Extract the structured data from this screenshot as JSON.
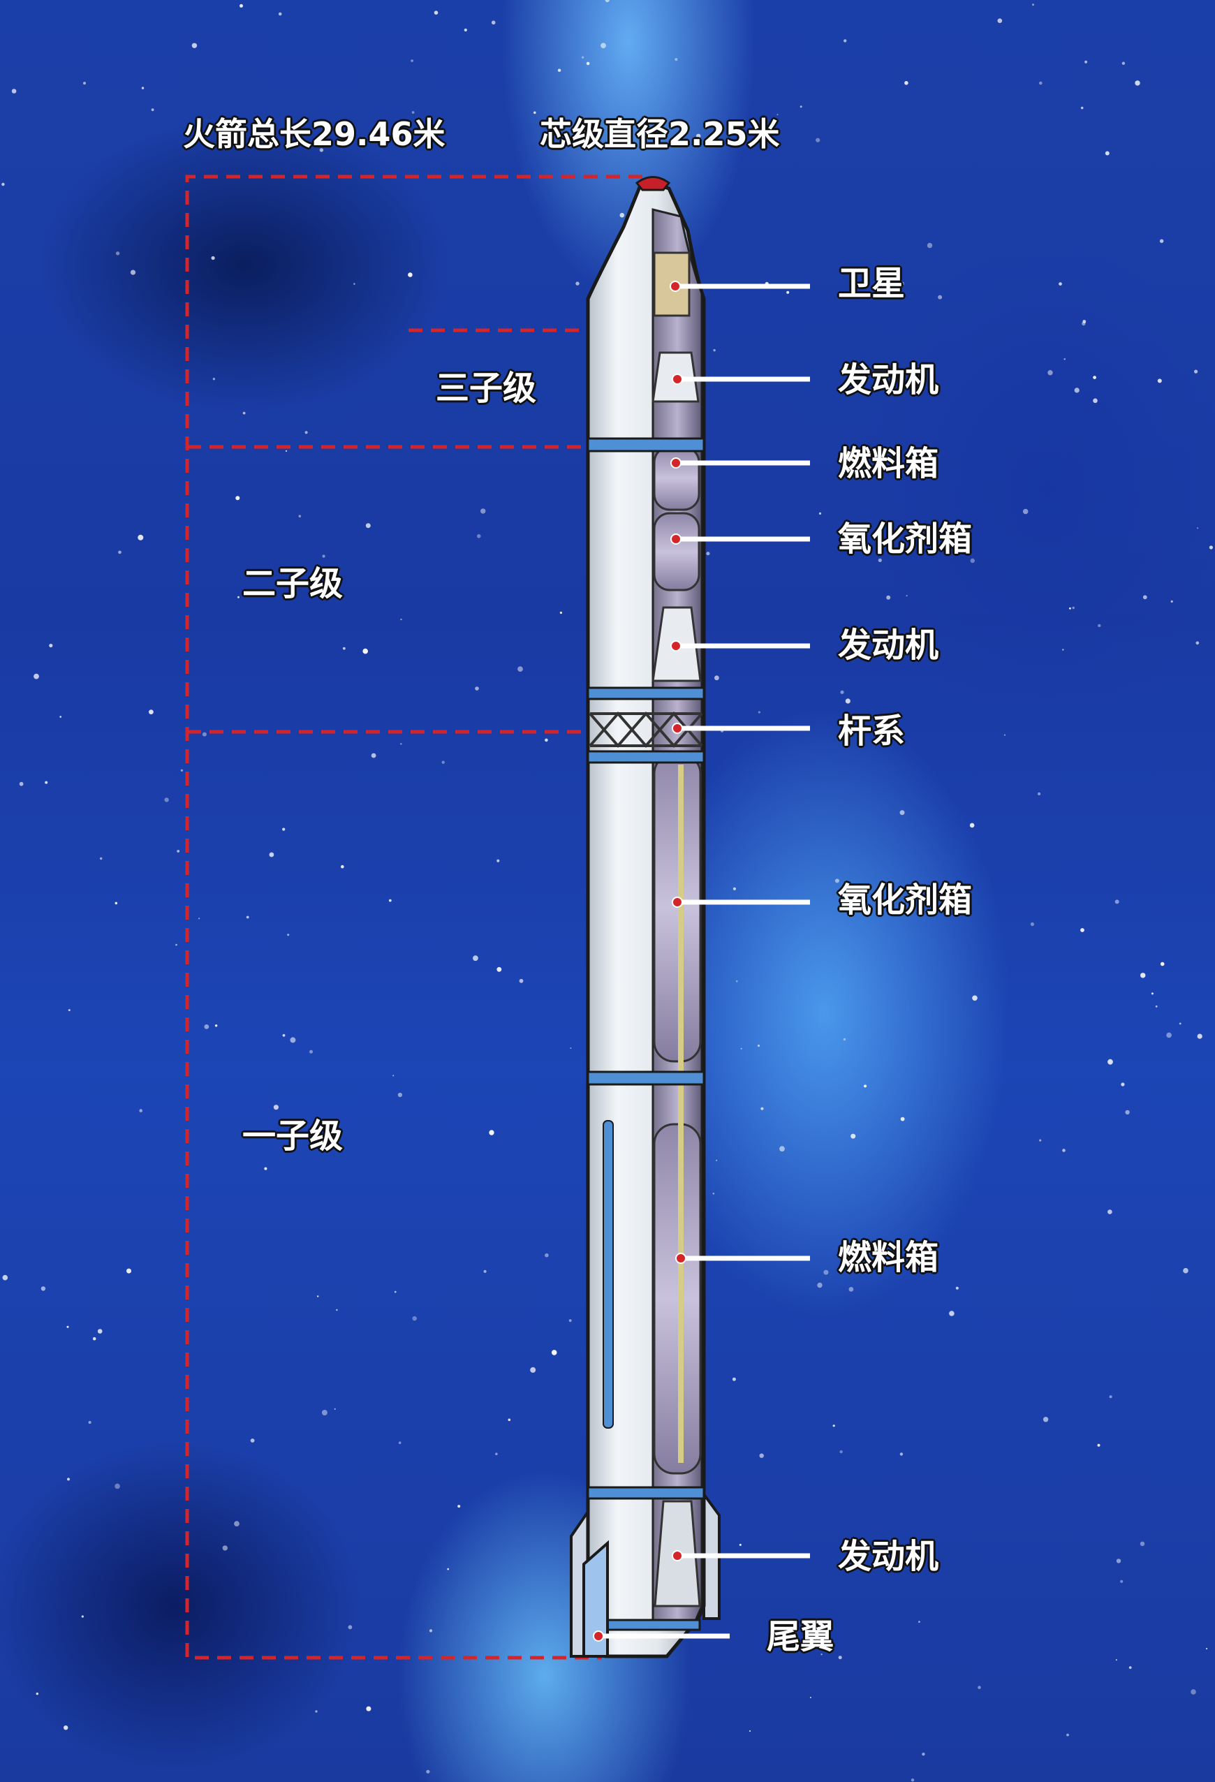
{
  "header": {
    "total_length": "火箭总长29.46米",
    "core_diameter": "芯级直径2.25米"
  },
  "stages": {
    "third": "三子级",
    "second": "二子级",
    "first": "一子级"
  },
  "parts": {
    "satellite": "卫星",
    "engine_3": "发动机",
    "fuel_tank_2": "燃料箱",
    "oxidizer_tank_2": "氧化剂箱",
    "engine_2": "发动机",
    "truss": "杆系",
    "oxidizer_tank_1": "氧化剂箱",
    "fuel_tank_1": "燃料箱",
    "engine_1": "发动机",
    "tail_fin": "尾翼"
  },
  "colors": {
    "stage_bracket": "#d4262a",
    "leader_line": "#ffffff",
    "leader_dot": "#d4262a",
    "rocket_body": "#e3e8ee",
    "rocket_band": "#4f8fd6",
    "nose_tip": "#c8202a"
  }
}
